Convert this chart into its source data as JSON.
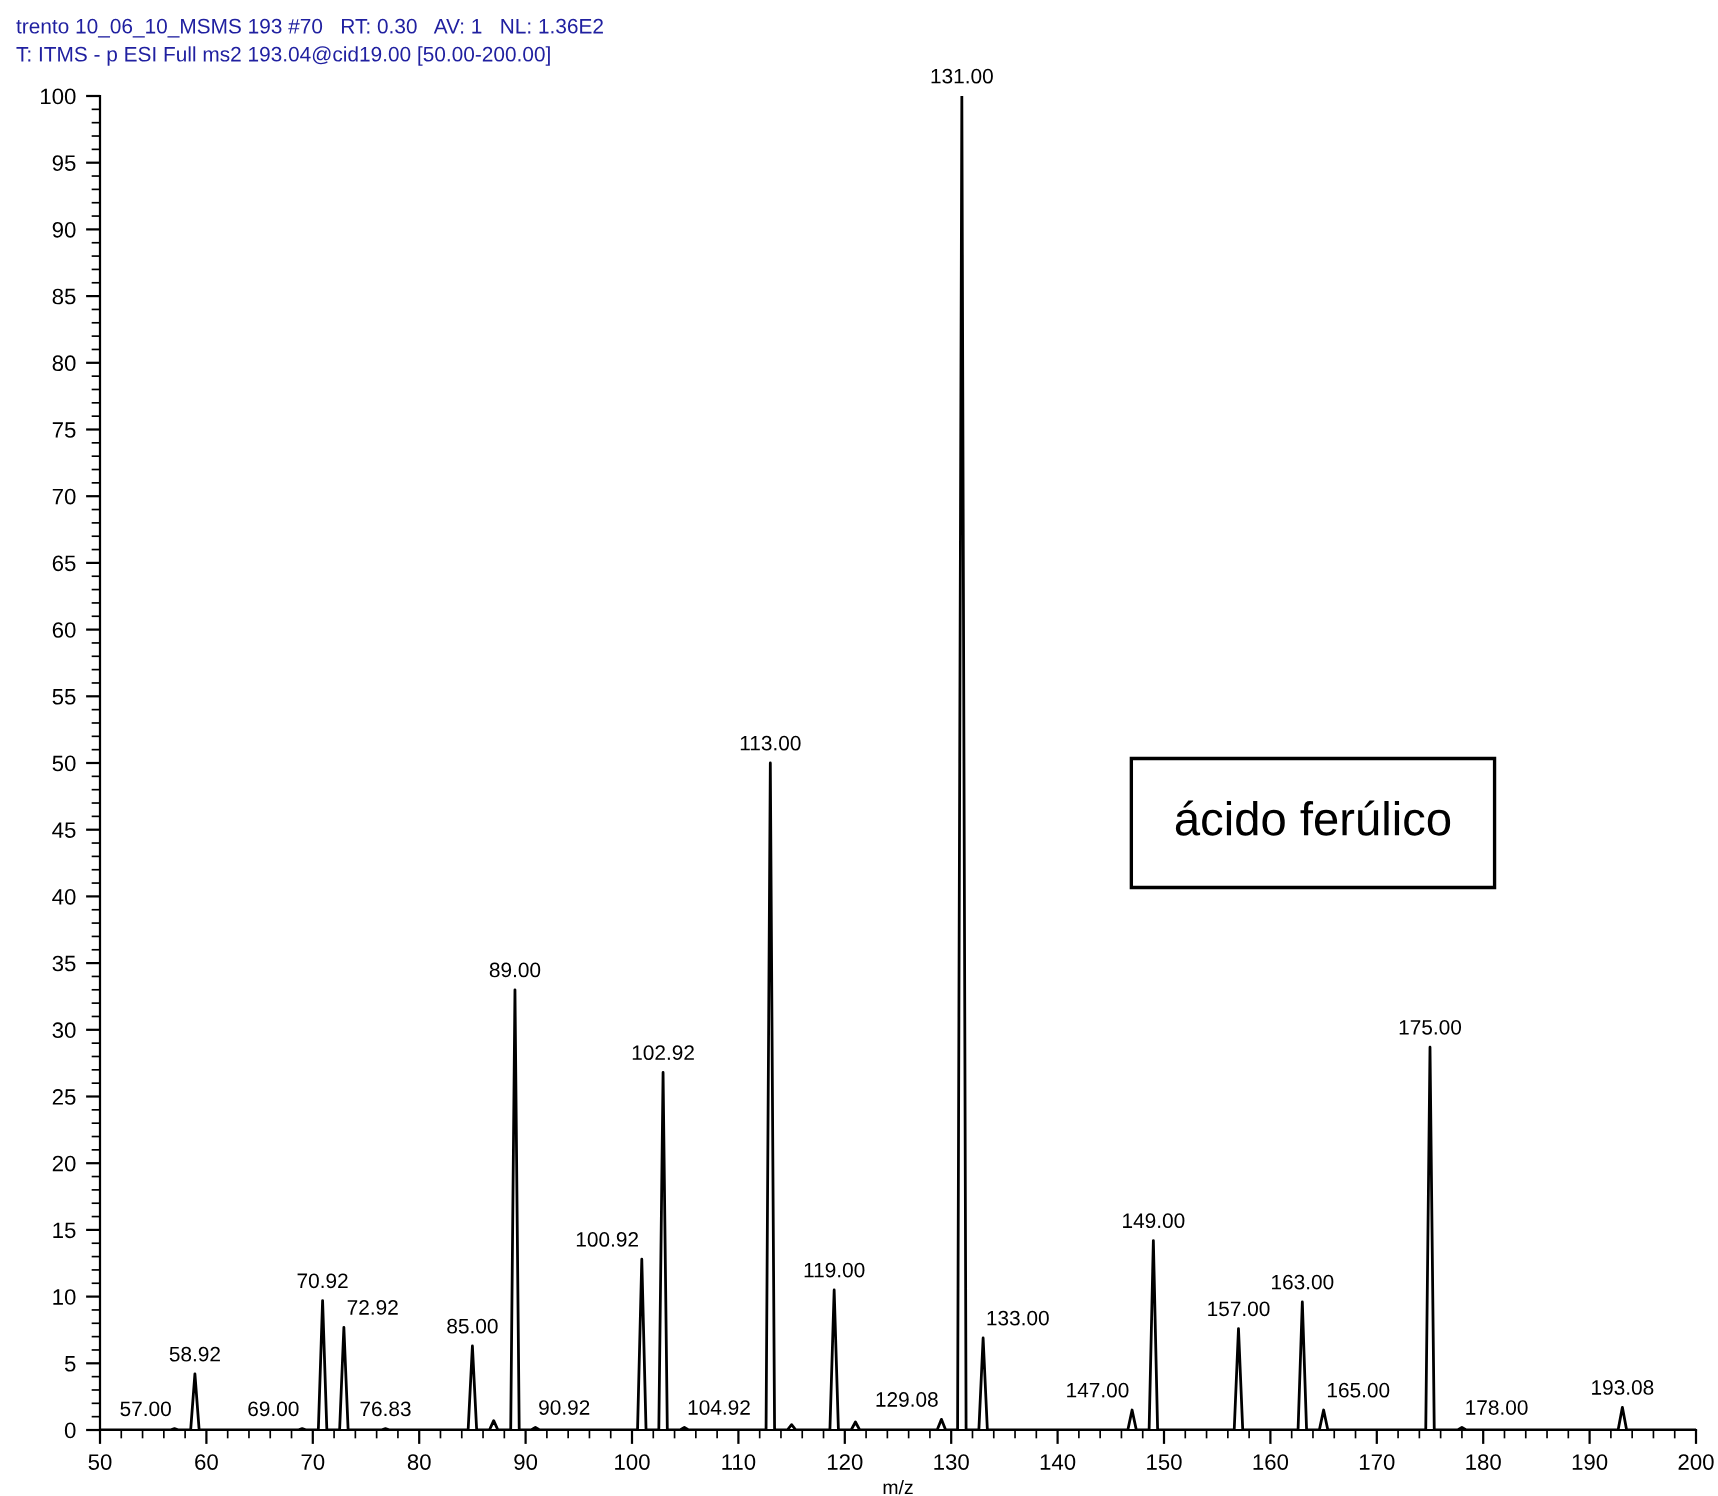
{
  "chart_data": {
    "type": "line",
    "title": "trento 10_06_10_MSMS 193 #70   RT: 0.30   AV: 1   NL: 1.36E2",
    "subtitle": "T: ITMS - p ESI Full ms2 193.04@cid19.00 [50.00-200.00]",
    "xlabel": "m/z",
    "series": [
      {
        "color": "#000000",
        "x": [
          50,
          56.6,
          57.0,
          57.4,
          58.52,
          58.92,
          59.32,
          68.6,
          69.0,
          69.4,
          70.52,
          70.92,
          71.32,
          72.52,
          72.92,
          73.32,
          76.43,
          76.83,
          77.23,
          84.6,
          85.0,
          85.4,
          86.6,
          87.0,
          87.4,
          88.6,
          89.0,
          89.4,
          90.52,
          90.92,
          91.32,
          100.52,
          100.92,
          101.32,
          102.52,
          102.92,
          103.32,
          104.52,
          104.92,
          105.32,
          112.6,
          113.0,
          113.4,
          114.6,
          115.0,
          115.4,
          118.6,
          119.0,
          119.4,
          120.6,
          121.0,
          121.4,
          128.68,
          129.08,
          129.48,
          130.6,
          131.0,
          131.4,
          132.6,
          133.0,
          133.4,
          146.6,
          147.0,
          147.4,
          148.6,
          149.0,
          149.4,
          156.6,
          157.0,
          157.4,
          162.6,
          163.0,
          163.4,
          164.6,
          165.0,
          165.4,
          174.6,
          175.0,
          175.4,
          177.6,
          178.0,
          178.4,
          192.68,
          193.08,
          193.48,
          200
        ],
        "values": [
          0,
          0,
          0.1,
          0,
          0,
          4.2,
          0,
          0,
          0.1,
          0,
          0,
          9.7,
          0,
          0,
          7.7,
          0,
          0,
          0.1,
          0,
          0,
          6.3,
          0,
          0,
          0.7,
          0,
          0,
          33,
          0,
          0,
          0.2,
          0,
          0,
          12.8,
          0,
          0,
          26.8,
          0,
          0,
          0.2,
          0,
          0,
          50,
          0,
          0,
          0.4,
          0,
          0,
          10.5,
          0,
          0,
          0.6,
          0,
          0,
          0.8,
          0,
          0,
          100,
          0,
          0,
          6.9,
          0,
          0,
          1.5,
          0,
          0,
          14.2,
          0,
          0,
          7.6,
          0,
          0,
          9.6,
          0,
          0,
          1.5,
          0,
          0,
          28.7,
          0,
          0,
          0.2,
          0,
          0,
          1.7,
          0,
          0
        ]
      }
    ],
    "xlim": [
      50,
      200
    ],
    "ylim": [
      0,
      100
    ],
    "xticks": [
      50,
      60,
      70,
      80,
      90,
      100,
      110,
      120,
      130,
      140,
      150,
      160,
      170,
      180,
      190,
      200
    ],
    "yticks": [
      0,
      5,
      10,
      15,
      20,
      25,
      30,
      35,
      40,
      45,
      50,
      55,
      60,
      65,
      70,
      75,
      80,
      85,
      90,
      95,
      100
    ],
    "grid": false,
    "legend": false,
    "marker": "none",
    "line_style": "solid",
    "annotations": [
      {
        "text": "57.00",
        "x": 57.0,
        "y": 0.1
      },
      {
        "text": "58.92",
        "x": 58.92,
        "y": 4.2
      },
      {
        "text": "69.00",
        "x": 69.0,
        "y": 0.1
      },
      {
        "text": "70.92",
        "x": 70.92,
        "y": 9.7
      },
      {
        "text": "72.92",
        "x": 72.92,
        "y": 7.7
      },
      {
        "text": "76.83",
        "x": 76.83,
        "y": 0.1
      },
      {
        "text": "85.00",
        "x": 85.0,
        "y": 6.3
      },
      {
        "text": "89.00",
        "x": 89.0,
        "y": 33
      },
      {
        "text": "90.92",
        "x": 90.92,
        "y": 0.2
      },
      {
        "text": "100.92",
        "x": 100.92,
        "y": 12.8
      },
      {
        "text": "102.92",
        "x": 102.92,
        "y": 26.8
      },
      {
        "text": "104.92",
        "x": 104.92,
        "y": 0.2
      },
      {
        "text": "113.00",
        "x": 113.0,
        "y": 50
      },
      {
        "text": "119.00",
        "x": 119.0,
        "y": 10.5
      },
      {
        "text": "129.08",
        "x": 129.08,
        "y": 0.8
      },
      {
        "text": "131.00",
        "x": 131.0,
        "y": 100
      },
      {
        "text": "133.00",
        "x": 133.0,
        "y": 6.9
      },
      {
        "text": "147.00",
        "x": 147.0,
        "y": 1.5
      },
      {
        "text": "149.00",
        "x": 149.0,
        "y": 14.2
      },
      {
        "text": "157.00",
        "x": 157.0,
        "y": 7.6
      },
      {
        "text": "163.00",
        "x": 163.0,
        "y": 9.6
      },
      {
        "text": "165.00",
        "x": 165.0,
        "y": 1.5
      },
      {
        "text": "175.00",
        "x": 175.0,
        "y": 28.7
      },
      {
        "text": "178.00",
        "x": 178.0,
        "y": 0.2
      },
      {
        "text": "193.08",
        "x": 193.08,
        "y": 1.7
      },
      "ácido ferúlico"
    ]
  }
}
